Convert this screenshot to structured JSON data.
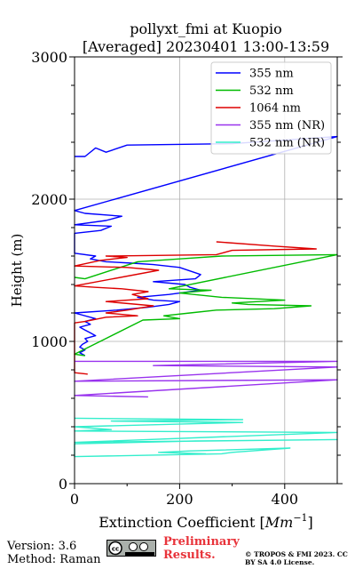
{
  "chart_data": {
    "type": "line",
    "title": "pollyxt_fmi at Kuopio",
    "subtitle": "[Averaged] 20230401 13:00-13:59",
    "xlabel": "Extinction Coefficient [Mm⁻¹]",
    "ylabel": "Height (m)",
    "xlim": [
      0,
      500
    ],
    "ylim": [
      0,
      3000
    ],
    "x_ticks": [
      "0",
      "200",
      "400"
    ],
    "x_tick_values": [
      0,
      200,
      400
    ],
    "y_ticks": [
      "0",
      "1000",
      "2000",
      "3000"
    ],
    "y_tick_values": [
      0,
      1000,
      2000,
      3000
    ],
    "grid": true,
    "legend_position": "top-right",
    "series": [
      {
        "name": "355 nm",
        "color": "#0000ff",
        "points": [
          [
            0,
            2300
          ],
          [
            20,
            2300
          ],
          [
            40,
            2360
          ],
          [
            60,
            2330
          ],
          [
            100,
            2380
          ],
          [
            300,
            2390
          ],
          [
            500,
            2440
          ],
          [
            0,
            1920
          ],
          [
            20,
            1900
          ],
          [
            90,
            1880
          ],
          [
            80,
            1870
          ],
          [
            60,
            1850
          ],
          [
            0,
            1820
          ],
          [
            70,
            1810
          ],
          [
            50,
            1780
          ],
          [
            0,
            1760
          ],
          [
            0,
            1620
          ],
          [
            40,
            1600
          ],
          [
            30,
            1580
          ],
          [
            60,
            1560
          ],
          [
            110,
            1550
          ],
          [
            150,
            1540
          ],
          [
            200,
            1520
          ],
          [
            240,
            1470
          ],
          [
            230,
            1440
          ],
          [
            150,
            1420
          ],
          [
            210,
            1400
          ],
          [
            220,
            1380
          ],
          [
            240,
            1360
          ],
          [
            180,
            1330
          ],
          [
            120,
            1310
          ],
          [
            150,
            1290
          ],
          [
            200,
            1280
          ],
          [
            180,
            1260
          ],
          [
            140,
            1240
          ],
          [
            80,
            1220
          ],
          [
            0,
            1200
          ],
          [
            40,
            1160
          ],
          [
            20,
            1140
          ],
          [
            30,
            1120
          ],
          [
            10,
            1100
          ],
          [
            20,
            1080
          ],
          [
            30,
            1060
          ],
          [
            40,
            1040
          ],
          [
            20,
            1020
          ],
          [
            25,
            1000
          ],
          [
            15,
            980
          ],
          [
            10,
            960
          ],
          [
            20,
            940
          ],
          [
            10,
            920
          ],
          [
            20,
            900
          ]
        ]
      },
      {
        "name": "532 nm",
        "color": "#00bb00",
        "points": [
          [
            0,
            1450
          ],
          [
            20,
            1440
          ],
          [
            120,
            1560
          ],
          [
            200,
            1580
          ],
          [
            280,
            1600
          ],
          [
            500,
            1610
          ],
          [
            180,
            1370
          ],
          [
            260,
            1360
          ],
          [
            200,
            1340
          ],
          [
            280,
            1310
          ],
          [
            400,
            1290
          ],
          [
            300,
            1270
          ],
          [
            330,
            1260
          ],
          [
            450,
            1250
          ],
          [
            380,
            1230
          ],
          [
            270,
            1220
          ],
          [
            220,
            1200
          ],
          [
            170,
            1180
          ],
          [
            200,
            1160
          ],
          [
            130,
            1150
          ],
          [
            0,
            910
          ],
          [
            20,
            900
          ]
        ]
      },
      {
        "name": "1064 nm",
        "color": "#dd0000",
        "points": [
          [
            270,
            1700
          ],
          [
            380,
            1670
          ],
          [
            460,
            1650
          ],
          [
            300,
            1640
          ],
          [
            270,
            1610
          ],
          [
            60,
            1600
          ],
          [
            100,
            1590
          ],
          [
            50,
            1570
          ],
          [
            0,
            1530
          ],
          [
            100,
            1520
          ],
          [
            160,
            1500
          ],
          [
            0,
            1390
          ],
          [
            40,
            1380
          ],
          [
            90,
            1370
          ],
          [
            140,
            1350
          ],
          [
            110,
            1330
          ],
          [
            140,
            1300
          ],
          [
            60,
            1280
          ],
          [
            150,
            1250
          ],
          [
            100,
            1220
          ],
          [
            60,
            1200
          ],
          [
            120,
            1180
          ],
          [
            60,
            1170
          ],
          [
            20,
            1140
          ],
          [
            0,
            1130
          ],
          [
            0,
            780
          ],
          [
            25,
            770
          ]
        ]
      },
      {
        "name": "355 nm (NR)",
        "color": "#9933ee",
        "points": [
          [
            0,
            860
          ],
          [
            500,
            860
          ],
          [
            150,
            830
          ],
          [
            500,
            820
          ],
          [
            0,
            720
          ],
          [
            500,
            730
          ],
          [
            0,
            620
          ],
          [
            140,
            610
          ]
        ]
      },
      {
        "name": "532 nm (NR)",
        "color": "#33eecc",
        "points": [
          [
            0,
            460
          ],
          [
            320,
            450
          ],
          [
            70,
            440
          ],
          [
            320,
            430
          ],
          [
            0,
            400
          ],
          [
            70,
            380
          ],
          [
            0,
            370
          ],
          [
            500,
            360
          ],
          [
            0,
            290
          ],
          [
            500,
            310
          ],
          [
            230,
            300
          ],
          [
            0,
            280
          ],
          [
            0,
            190
          ],
          [
            280,
            210
          ],
          [
            300,
            220
          ],
          [
            410,
            250
          ],
          [
            220,
            230
          ],
          [
            160,
            220
          ],
          [
            250,
            210
          ]
        ]
      }
    ]
  },
  "footer": {
    "version": "Version: 3.6",
    "method": "Method: Raman",
    "preliminary": "Preliminary Results.",
    "license": "© TROPOS & FMI 2023. CC BY SA 4.0 License."
  }
}
